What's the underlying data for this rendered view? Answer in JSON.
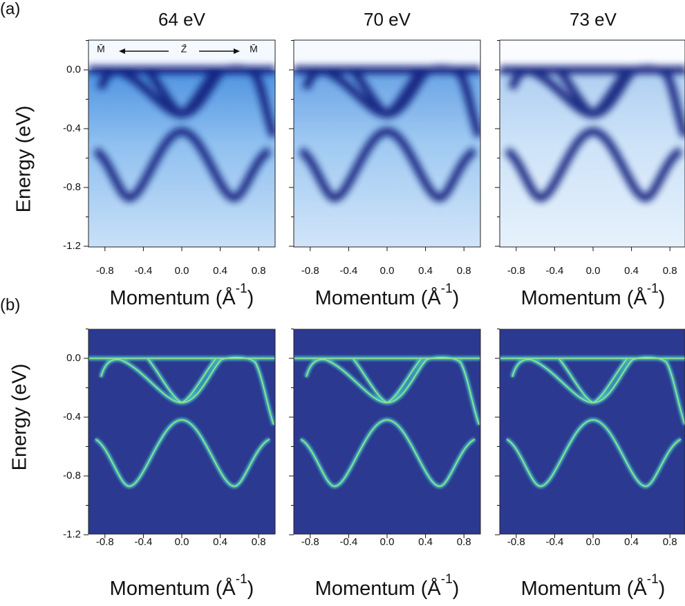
{
  "rows": [
    {
      "label": "(a)",
      "y_axis_label": "Energy (eV)",
      "panels": [
        {
          "title": "64 eV"
        },
        {
          "title": "70 eV"
        },
        {
          "title": "73 eV"
        }
      ]
    },
    {
      "label": "(b)",
      "y_axis_label": "Energy (eV)"
    }
  ],
  "y_ticks": [
    "0.0",
    "-0.4",
    "-0.8",
    "-1.2"
  ],
  "x_ticks": [
    "-0.8",
    "-0.4",
    "0.0",
    "0.4",
    "0.8"
  ],
  "x_axis_label": {
    "text": "Momentum (Å",
    "superscript": "-1",
    "close": ")"
  },
  "annotation": {
    "left": "M̄",
    "center": "Z̄",
    "right": "M̄"
  }
}
